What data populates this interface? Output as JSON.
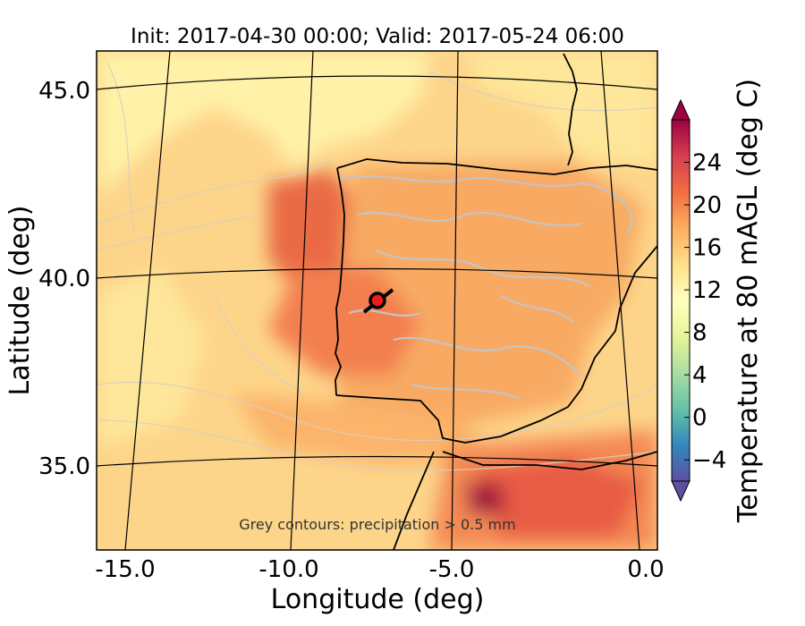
{
  "title": "Init: 2017-04-30 00:00; Valid: 2017-05-24 06:00",
  "map": {
    "xlabel": "Longitude (deg)",
    "ylabel": "Latitude (deg)",
    "lon_ticks": [
      "-15.0",
      "-10.0",
      "-5.0",
      "0.0"
    ],
    "lat_ticks": [
      "45.0",
      "40.0",
      "35.0"
    ],
    "note": "Grey contours: precipitation > 0.5 mm",
    "marker": {
      "lon": -7.7,
      "lat": 39.3,
      "fill": "#ee1c1c"
    }
  },
  "colorbar": {
    "label": "Temperature at 80 mAGL (deg C)",
    "ticks": [
      "24",
      "20",
      "16",
      "12",
      "8",
      "4",
      "0",
      "−4"
    ],
    "range": [
      -6,
      28
    ],
    "colors": [
      "#5e4fa2",
      "#3288bd",
      "#66c2a5",
      "#abdda4",
      "#e6f598",
      "#ffffbf",
      "#fee08b",
      "#fdae61",
      "#f46d43",
      "#d53e4f",
      "#9e0142"
    ]
  }
}
